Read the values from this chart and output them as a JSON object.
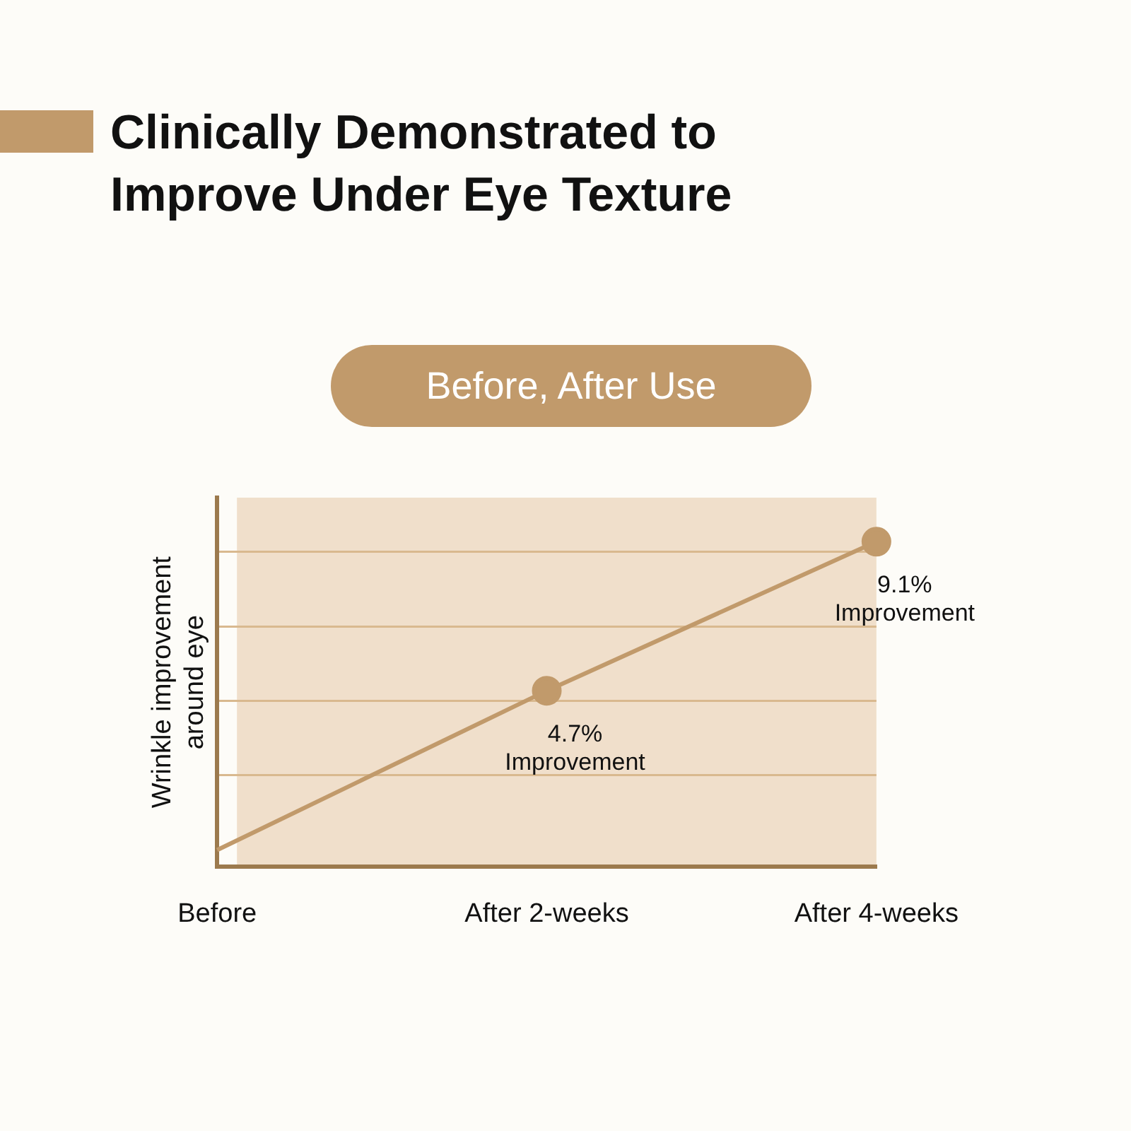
{
  "chart_data": {
    "type": "line",
    "title": "Clinically Demonstrated to Improve Under Eye Texture",
    "subtitle": "Before, After Use",
    "ylabel": "Wrinkle improvement around eye",
    "categories": [
      "Before",
      "After 2-weeks",
      "After 4-weeks"
    ],
    "series": [
      {
        "color": "#c19a6b",
        "values": [
          0,
          4.7,
          9.1
        ],
        "value_labels": [
          null,
          "4.7% Improvement",
          "9.1% Improvement"
        ]
      }
    ],
    "ylim": [
      -0.5,
      10.4
    ],
    "yticks": [
      {
        "value": 2.2,
        "label": null
      },
      {
        "value": 4.4,
        "label": null
      },
      {
        "value": 6.6,
        "label": null
      },
      {
        "value": 8.8,
        "label": null
      }
    ],
    "grid": "y",
    "tick_labels": "x",
    "marker": "circle",
    "legend": false
  }
}
